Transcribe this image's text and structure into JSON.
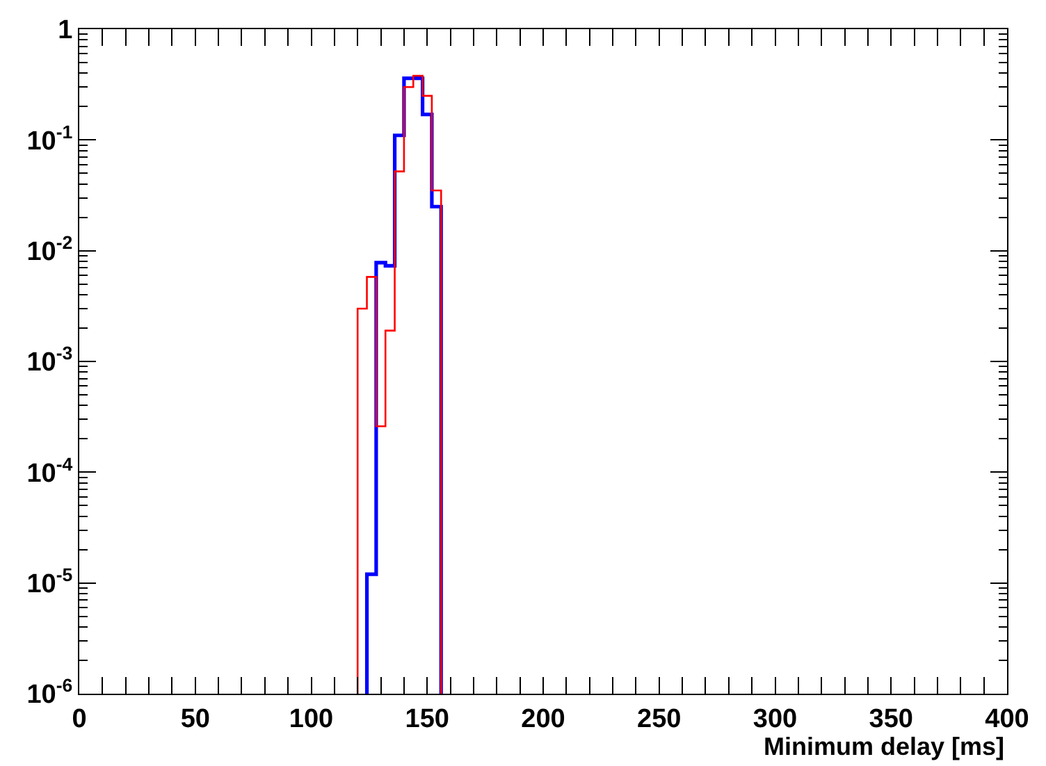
{
  "chart_data": {
    "type": "histogram",
    "xlabel": "Minimum delay [ms]",
    "bins": [
      120,
      124,
      128,
      132,
      136,
      140,
      144,
      148,
      152,
      156
    ],
    "series": [
      {
        "color": "#0000ff",
        "bins": [
          124,
          128,
          132,
          136,
          140,
          144,
          148,
          152,
          156
        ],
        "values": [
          1.2e-05,
          0.0078,
          0.0073,
          0.11,
          0.36,
          0.36,
          0.17,
          0.025
        ]
      },
      {
        "color": "#ff0000",
        "values": [
          0.003,
          0.0058,
          0.00026,
          0.0019,
          0.052,
          0.3,
          0.38,
          0.25,
          0.035
        ]
      }
    ],
    "log": "y",
    "xlim": [
      0,
      400
    ],
    "ylim": [
      1e-06,
      1
    ],
    "xticks": [
      0,
      {
        "value": 10,
        "label": null
      },
      {
        "value": 20,
        "label": null
      },
      {
        "value": 30,
        "label": null
      },
      {
        "value": 40,
        "label": null
      },
      50,
      {
        "value": 60,
        "label": null
      },
      {
        "value": 70,
        "label": null
      },
      {
        "value": 80,
        "label": null
      },
      {
        "value": 90,
        "label": null
      },
      100,
      {
        "value": 110,
        "label": null
      },
      {
        "value": 120,
        "label": null
      },
      {
        "value": 130,
        "label": null
      },
      {
        "value": 140,
        "label": null
      },
      150,
      {
        "value": 160,
        "label": null
      },
      {
        "value": 170,
        "label": null
      },
      {
        "value": 180,
        "label": null
      },
      {
        "value": 190,
        "label": null
      },
      200,
      {
        "value": 210,
        "label": null
      },
      {
        "value": 220,
        "label": null
      },
      {
        "value": 230,
        "label": null
      },
      {
        "value": 240,
        "label": null
      },
      250,
      {
        "value": 260,
        "label": null
      },
      {
        "value": 270,
        "label": null
      },
      {
        "value": 280,
        "label": null
      },
      {
        "value": 290,
        "label": null
      },
      300,
      {
        "value": 310,
        "label": null
      },
      {
        "value": 320,
        "label": null
      },
      {
        "value": 330,
        "label": null
      },
      {
        "value": 340,
        "label": null
      },
      350,
      {
        "value": 360,
        "label": null
      },
      {
        "value": 370,
        "label": null
      },
      {
        "value": 380,
        "label": null
      },
      {
        "value": 390,
        "label": null
      },
      400
    ],
    "yticks": [
      {
        "value": 1e-06,
        "label": "10$^{-6}$"
      },
      {
        "value": 1e-05,
        "label": "10$^{-5}$"
      },
      {
        "value": 0.0001,
        "label": "10$^{-4}$"
      },
      {
        "value": 0.001,
        "label": "10$^{-3}$"
      },
      {
        "value": 0.01,
        "label": "10$^{-2}$"
      },
      {
        "value": 0.1,
        "label": "10$^{-1}$"
      },
      1
    ],
    "line_style": "solid"
  }
}
